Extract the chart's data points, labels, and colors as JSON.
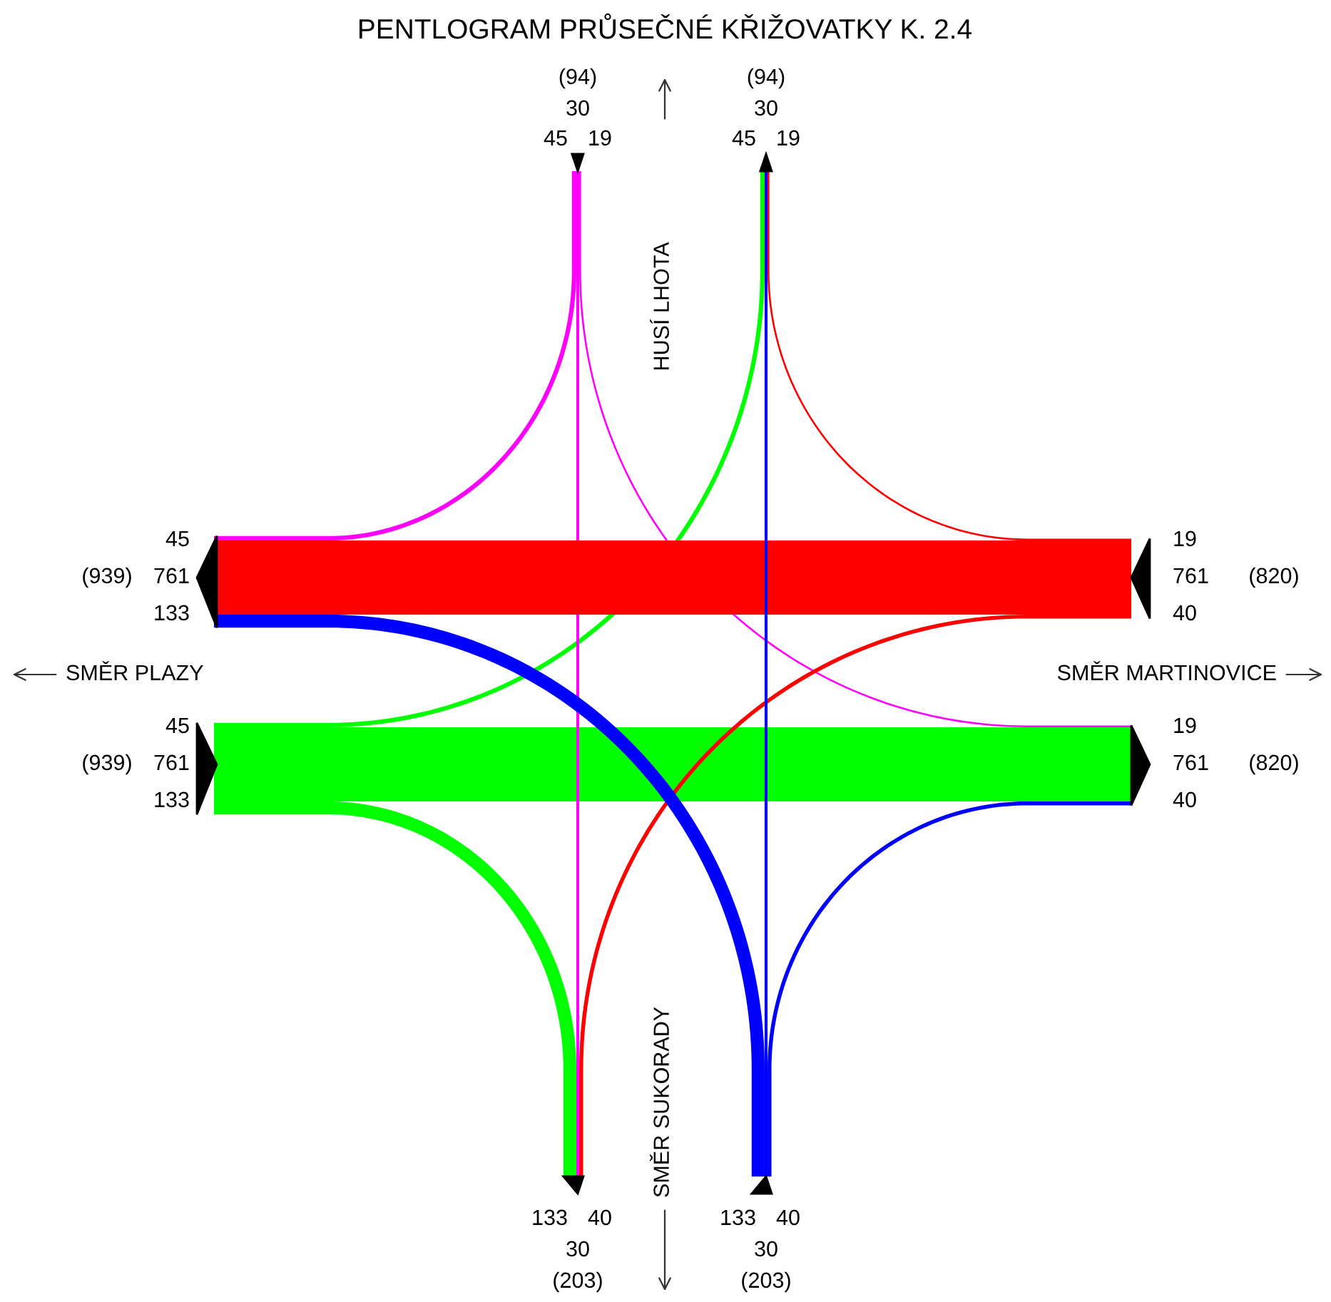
{
  "chart_data": {
    "type": "other",
    "title": "PENTLOGRAM PRŮSEČNÉ KŘIŽOVATKY K. 2.4",
    "categories": [
      "SMĚR PLAZY",
      "HUSÍ LHOTA",
      "SMĚR MARTINOVICE",
      "SMĚR SUKORADY"
    ],
    "series": [
      {
        "color": "#00ff00",
        "values": [
          null,
          45,
          761,
          133
        ]
      },
      {
        "values": [
          null,
          45,
          761,
          133
        ]
      },
      {
        "color": "#ff00ff",
        "values": [
          45,
          null,
          19,
          30
        ]
      },
      {
        "values": [
          45,
          null,
          19,
          30
        ]
      },
      {
        "color": "#ff0000",
        "values": [
          761,
          19,
          null,
          40
        ]
      },
      {
        "values": [
          761,
          19,
          null,
          40
        ]
      },
      {
        "color": "#0000ff",
        "values": [
          133,
          30,
          40,
          null
        ]
      },
      {
        "values": [
          133,
          30,
          40,
          null
        ]
      }
    ],
    "data_labels": true,
    "totals": [
      "(939)",
      "(94)",
      "(820)",
      "(203)"
    ]
  }
}
